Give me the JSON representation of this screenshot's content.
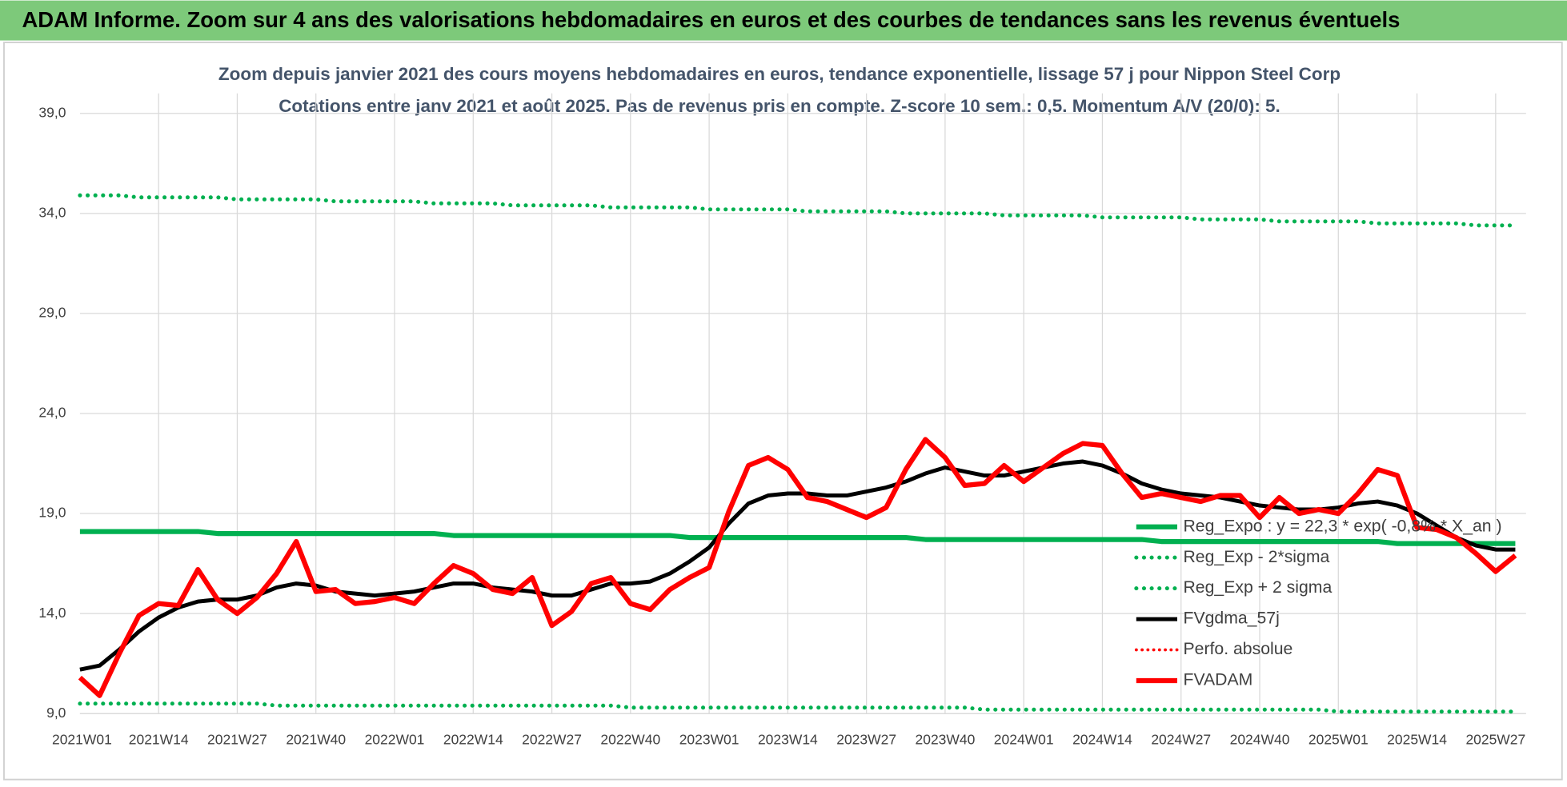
{
  "header": {
    "title": "ADAM Informe. Zoom sur 4 ans des valorisations hebdomadaires en euros et des courbes de tendances sans les revenus éventuels"
  },
  "chart_data": {
    "type": "line",
    "title": "Zoom depuis janvier 2021 des cours moyens hebdomadaires en euros, tendance exponentielle, lissage 57 j pour Nippon Steel Corp",
    "subtitle": "Cotations entre janv 2021 et août 2025. Pas de revenus pris en compte. Z-score 10 sem.: 0,5. Momentum A/V (20/0): 5.",
    "categories": [
      "2021W01",
      null,
      null,
      null,
      "2021W14",
      null,
      null,
      null,
      "2021W27",
      null,
      null,
      null,
      "2021W40",
      null,
      null,
      null,
      "2022W01",
      null,
      null,
      null,
      "2022W14",
      null,
      null,
      null,
      "2022W27",
      null,
      null,
      null,
      "2022W40",
      null,
      null,
      null,
      "2023W01",
      null,
      null,
      null,
      "2023W14",
      null,
      null,
      null,
      "2023W27",
      null,
      null,
      null,
      "2023W40",
      null,
      null,
      null,
      "2024W01",
      null,
      null,
      null,
      "2024W14",
      null,
      null,
      null,
      "2024W27",
      null,
      null,
      null,
      "2024W40",
      null,
      null,
      null,
      "2025W01",
      null,
      null,
      null,
      "2025W14",
      null,
      null,
      null,
      "2025W27",
      null
    ],
    "ylim": [
      9,
      40
    ],
    "yticks": [
      {
        "value": 9,
        "label": "9,0"
      },
      {
        "value": 14,
        "label": "14,0"
      },
      {
        "value": 19,
        "label": "19,0"
      },
      {
        "value": 24,
        "label": "24,0"
      },
      {
        "value": 29,
        "label": "29,0"
      },
      {
        "value": 34,
        "label": "34,0"
      },
      {
        "value": 39,
        "label": "39,0"
      }
    ],
    "grid": true,
    "legend": "right",
    "series": [
      {
        "name": "Reg_Expo : y = 22,3 * exp( -0,8% * X_an )",
        "color": "#00b050",
        "style": "solid",
        "width": 5,
        "values": [
          18.1,
          18.1,
          18.1,
          18.1,
          18.1,
          18.1,
          18.1,
          18.0,
          18.0,
          18.0,
          18.0,
          18.0,
          18.0,
          18.0,
          18.0,
          18.0,
          18.0,
          18.0,
          18.0,
          17.9,
          17.9,
          17.9,
          17.9,
          17.9,
          17.9,
          17.9,
          17.9,
          17.9,
          17.9,
          17.9,
          17.9,
          17.8,
          17.8,
          17.8,
          17.8,
          17.8,
          17.8,
          17.8,
          17.8,
          17.8,
          17.8,
          17.8,
          17.8,
          17.7,
          17.7,
          17.7,
          17.7,
          17.7,
          17.7,
          17.7,
          17.7,
          17.7,
          17.7,
          17.7,
          17.7,
          17.6,
          17.6,
          17.6,
          17.6,
          17.6,
          17.6,
          17.6,
          17.6,
          17.6,
          17.6,
          17.6,
          17.6,
          17.5,
          17.5,
          17.5,
          17.5,
          17.5,
          17.5,
          17.5
        ]
      },
      {
        "name": "Reg_Exp - 2*sigma",
        "color": "#00b050",
        "style": "dotted",
        "width": 4,
        "values": [
          9.5,
          9.5,
          9.5,
          9.5,
          9.5,
          9.5,
          9.5,
          9.5,
          9.5,
          9.5,
          9.4,
          9.4,
          9.4,
          9.4,
          9.4,
          9.4,
          9.4,
          9.4,
          9.4,
          9.4,
          9.4,
          9.4,
          9.4,
          9.4,
          9.4,
          9.4,
          9.4,
          9.4,
          9.3,
          9.3,
          9.3,
          9.3,
          9.3,
          9.3,
          9.3,
          9.3,
          9.3,
          9.3,
          9.3,
          9.3,
          9.3,
          9.3,
          9.3,
          9.3,
          9.3,
          9.3,
          9.2,
          9.2,
          9.2,
          9.2,
          9.2,
          9.2,
          9.2,
          9.2,
          9.2,
          9.2,
          9.2,
          9.2,
          9.2,
          9.2,
          9.2,
          9.2,
          9.2,
          9.2,
          9.1,
          9.1,
          9.1,
          9.1,
          9.1,
          9.1,
          9.1,
          9.1,
          9.1,
          9.1
        ]
      },
      {
        "name": "Reg_Exp + 2 sigma",
        "color": "#00b050",
        "style": "dotted",
        "width": 4,
        "values": [
          34.9,
          34.9,
          34.9,
          34.8,
          34.8,
          34.8,
          34.8,
          34.8,
          34.7,
          34.7,
          34.7,
          34.7,
          34.7,
          34.6,
          34.6,
          34.6,
          34.6,
          34.6,
          34.5,
          34.5,
          34.5,
          34.5,
          34.4,
          34.4,
          34.4,
          34.4,
          34.4,
          34.3,
          34.3,
          34.3,
          34.3,
          34.3,
          34.2,
          34.2,
          34.2,
          34.2,
          34.2,
          34.1,
          34.1,
          34.1,
          34.1,
          34.1,
          34.0,
          34.0,
          34.0,
          34.0,
          34.0,
          33.9,
          33.9,
          33.9,
          33.9,
          33.9,
          33.8,
          33.8,
          33.8,
          33.8,
          33.8,
          33.7,
          33.7,
          33.7,
          33.7,
          33.6,
          33.6,
          33.6,
          33.6,
          33.6,
          33.5,
          33.5,
          33.5,
          33.5,
          33.5,
          33.4,
          33.4,
          33.4
        ]
      },
      {
        "name": "FVgdma_57j",
        "color": "#000000",
        "style": "solid",
        "width": 4,
        "values": [
          11.2,
          11.4,
          12.2,
          13.1,
          13.8,
          14.3,
          14.6,
          14.7,
          14.7,
          14.9,
          15.3,
          15.5,
          15.4,
          15.1,
          15.0,
          14.9,
          15.0,
          15.1,
          15.3,
          15.5,
          15.5,
          15.3,
          15.2,
          15.1,
          14.9,
          14.9,
          15.2,
          15.5,
          15.5,
          15.6,
          16.0,
          16.6,
          17.3,
          18.5,
          19.5,
          19.9,
          20.0,
          20.0,
          19.9,
          19.9,
          20.1,
          20.3,
          20.6,
          21.0,
          21.3,
          21.1,
          20.9,
          20.9,
          21.1,
          21.3,
          21.5,
          21.6,
          21.4,
          21.0,
          20.5,
          20.2,
          20.0,
          19.9,
          19.8,
          19.6,
          19.4,
          19.3,
          19.2,
          19.2,
          19.3,
          19.5,
          19.6,
          19.4,
          19.0,
          18.4,
          17.8,
          17.4,
          17.2,
          17.2
        ]
      },
      {
        "name": "Perfo. absolue",
        "color": "#ff0000",
        "style": "dotted",
        "width": 3,
        "values": [
          null,
          null,
          null,
          null,
          null,
          null,
          null,
          null,
          null,
          null,
          null,
          null,
          null,
          null,
          null,
          null,
          null,
          null,
          null,
          null,
          null,
          null,
          null,
          null,
          null,
          null,
          null,
          null,
          null,
          null,
          null,
          null,
          null,
          null,
          null,
          null,
          null,
          null,
          null,
          null,
          null,
          null,
          null,
          null,
          null,
          null,
          null,
          null,
          null,
          null,
          null,
          null,
          null,
          null,
          null,
          null,
          null,
          null,
          null,
          null,
          null,
          null,
          null,
          null,
          null,
          null,
          null,
          null,
          null,
          null,
          null,
          null,
          null,
          null
        ]
      },
      {
        "name": "FVADAM",
        "color": "#ff0000",
        "style": "solid",
        "width": 5,
        "values": [
          10.8,
          9.9,
          12.0,
          13.9,
          14.5,
          14.4,
          16.2,
          14.7,
          14.0,
          14.8,
          16.0,
          17.6,
          15.1,
          15.2,
          14.5,
          14.6,
          14.8,
          14.5,
          15.5,
          16.4,
          16.0,
          15.2,
          15.0,
          15.8,
          13.4,
          14.1,
          15.5,
          15.8,
          14.5,
          14.2,
          15.2,
          15.8,
          16.3,
          19.1,
          21.4,
          21.8,
          21.2,
          19.8,
          19.6,
          19.2,
          18.8,
          19.3,
          21.2,
          22.7,
          21.8,
          20.4,
          20.5,
          21.4,
          20.6,
          21.3,
          22.0,
          22.5,
          22.4,
          21.0,
          19.8,
          20.0,
          19.8,
          19.6,
          19.9,
          19.9,
          18.8,
          19.8,
          19.0,
          19.2,
          19.0,
          20.0,
          21.2,
          20.9,
          18.3,
          18.2,
          17.8,
          17.0,
          16.1,
          16.9
        ]
      }
    ]
  }
}
